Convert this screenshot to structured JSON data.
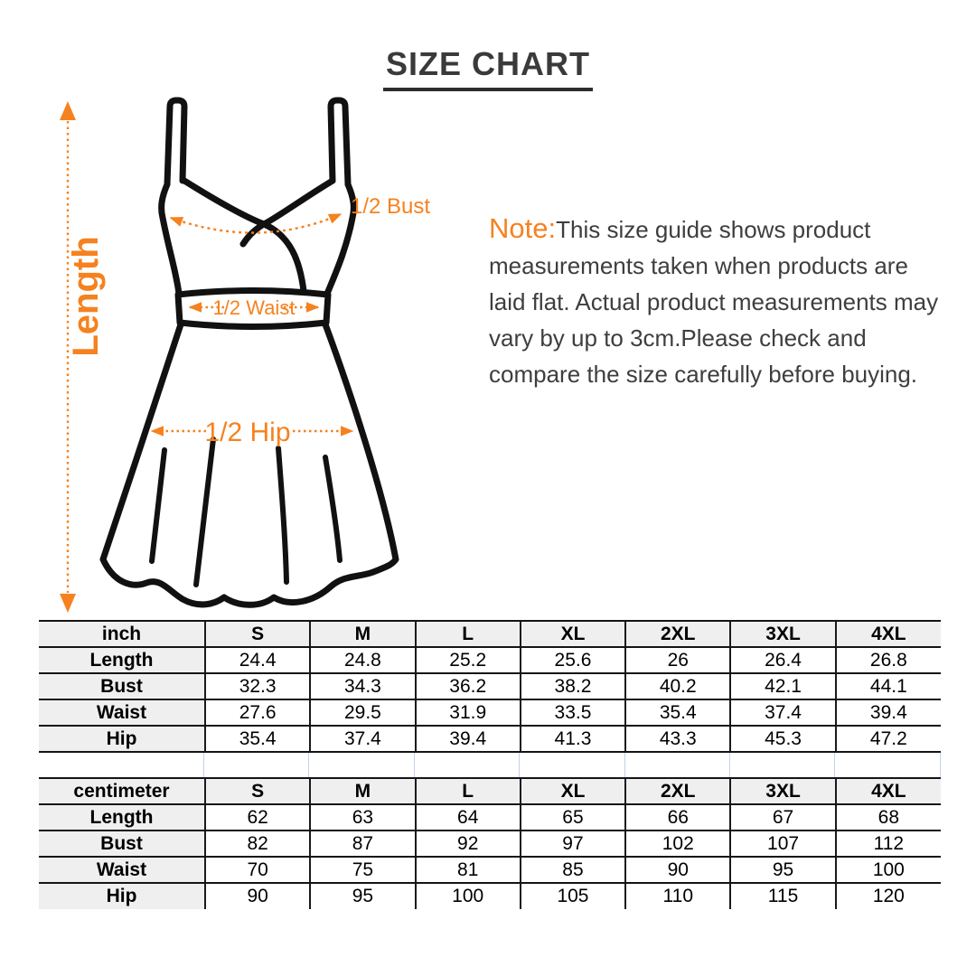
{
  "title": "SIZE CHART",
  "diagram": {
    "length_label": "Length",
    "bust_label": "1/2 Bust",
    "waist_label": "1/2 Waist",
    "hip_label": "1/2 Hip"
  },
  "note": {
    "label": "Note:",
    "text": "This size guide shows product measurements taken when products are laid flat. Actual product measurements may vary by up to 3cm.Please check and compare the size carefully before buying."
  },
  "colors": {
    "accent_orange": "#F5821F",
    "outline_black": "#111111",
    "title_gray": "#3A3A3A",
    "note_text": "#3E3E3E",
    "table_header_bg": "#EFEFEF",
    "gap_gridline_blue": "#C3D1EA"
  },
  "chart_data": [
    {
      "type": "table",
      "unit": "inch",
      "columns": [
        "S",
        "M",
        "L",
        "XL",
        "2XL",
        "3XL",
        "4XL"
      ],
      "rows": [
        {
          "label": "Length",
          "values": [
            24.4,
            24.8,
            25.2,
            25.6,
            26,
            26.4,
            26.8
          ]
        },
        {
          "label": "Bust",
          "values": [
            32.3,
            34.3,
            36.2,
            38.2,
            40.2,
            42.1,
            44.1
          ]
        },
        {
          "label": "Waist",
          "values": [
            27.6,
            29.5,
            31.9,
            33.5,
            35.4,
            37.4,
            39.4
          ]
        },
        {
          "label": "Hip",
          "values": [
            35.4,
            37.4,
            39.4,
            41.3,
            43.3,
            45.3,
            47.2
          ]
        }
      ]
    },
    {
      "type": "table",
      "unit": "centimeter",
      "columns": [
        "S",
        "M",
        "L",
        "XL",
        "2XL",
        "3XL",
        "4XL"
      ],
      "rows": [
        {
          "label": "Length",
          "values": [
            62,
            63,
            64,
            65,
            66,
            67,
            68
          ]
        },
        {
          "label": "Bust",
          "values": [
            82,
            87,
            92,
            97,
            102,
            107,
            112
          ]
        },
        {
          "label": "Waist",
          "values": [
            70,
            75,
            81,
            85,
            90,
            95,
            100
          ]
        },
        {
          "label": "Hip",
          "values": [
            90,
            95,
            100,
            105,
            110,
            115,
            120
          ]
        }
      ]
    }
  ]
}
